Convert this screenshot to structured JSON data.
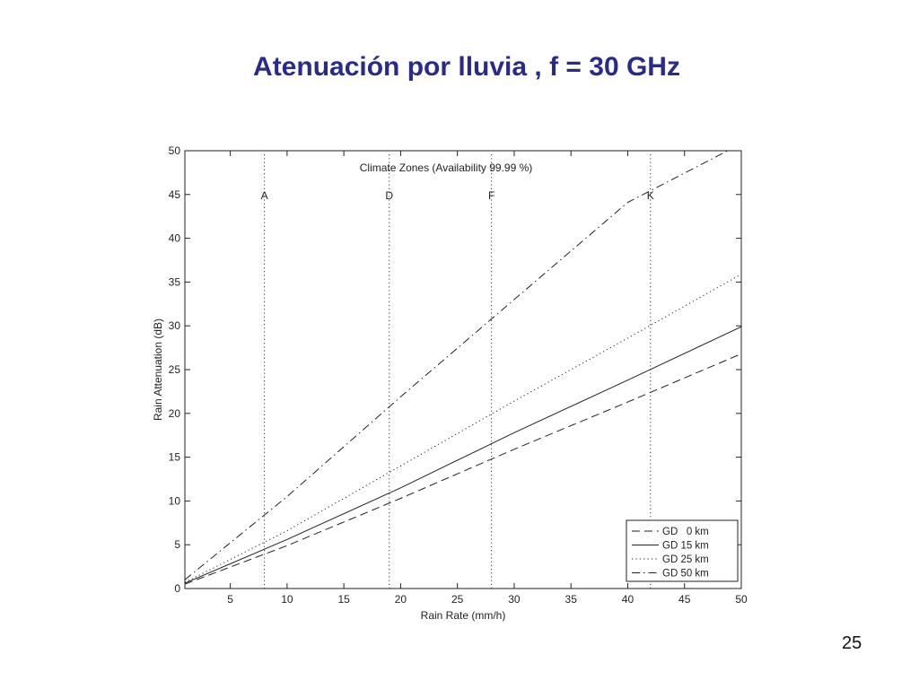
{
  "slide": {
    "title": "Atenuación por lluvia , f = 30 GHz",
    "page_number": "25"
  },
  "chart_data": {
    "type": "line",
    "title": "",
    "annotation": "Climate Zones (Availability 99.99 %)",
    "xlabel": "Rain Rate (mm/h)",
    "ylabel": "Rain Attenuation (dB)",
    "xlim": [
      1,
      50
    ],
    "ylim": [
      0,
      50
    ],
    "xticks": [
      5,
      10,
      15,
      20,
      25,
      30,
      35,
      40,
      45,
      50
    ],
    "yticks": [
      0,
      5,
      10,
      15,
      20,
      25,
      30,
      35,
      40,
      45,
      50
    ],
    "grid": false,
    "legend_position": "bottom-right",
    "zones": [
      {
        "label": "A",
        "x": 8
      },
      {
        "label": "D",
        "x": 19
      },
      {
        "label": "F",
        "x": 28
      },
      {
        "label": "K",
        "x": 42
      }
    ],
    "x": [
      1,
      10,
      20,
      30,
      40,
      50
    ],
    "series": [
      {
        "name": "GD   0 km",
        "style": "dashed",
        "values": [
          0.5,
          4.9,
          10.3,
          15.9,
          21.3,
          26.8
        ]
      },
      {
        "name": "GD 15 km",
        "style": "solid",
        "values": [
          0.6,
          5.6,
          11.5,
          17.8,
          23.8,
          29.9
        ]
      },
      {
        "name": "GD 25 km",
        "style": "dotted",
        "values": [
          0.7,
          6.6,
          14.0,
          21.4,
          28.6,
          35.9
        ]
      },
      {
        "name": "GD 50 km",
        "style": "dashdot",
        "values": [
          1.0,
          10.5,
          21.9,
          33.0,
          44.1,
          50.8
        ]
      }
    ]
  }
}
